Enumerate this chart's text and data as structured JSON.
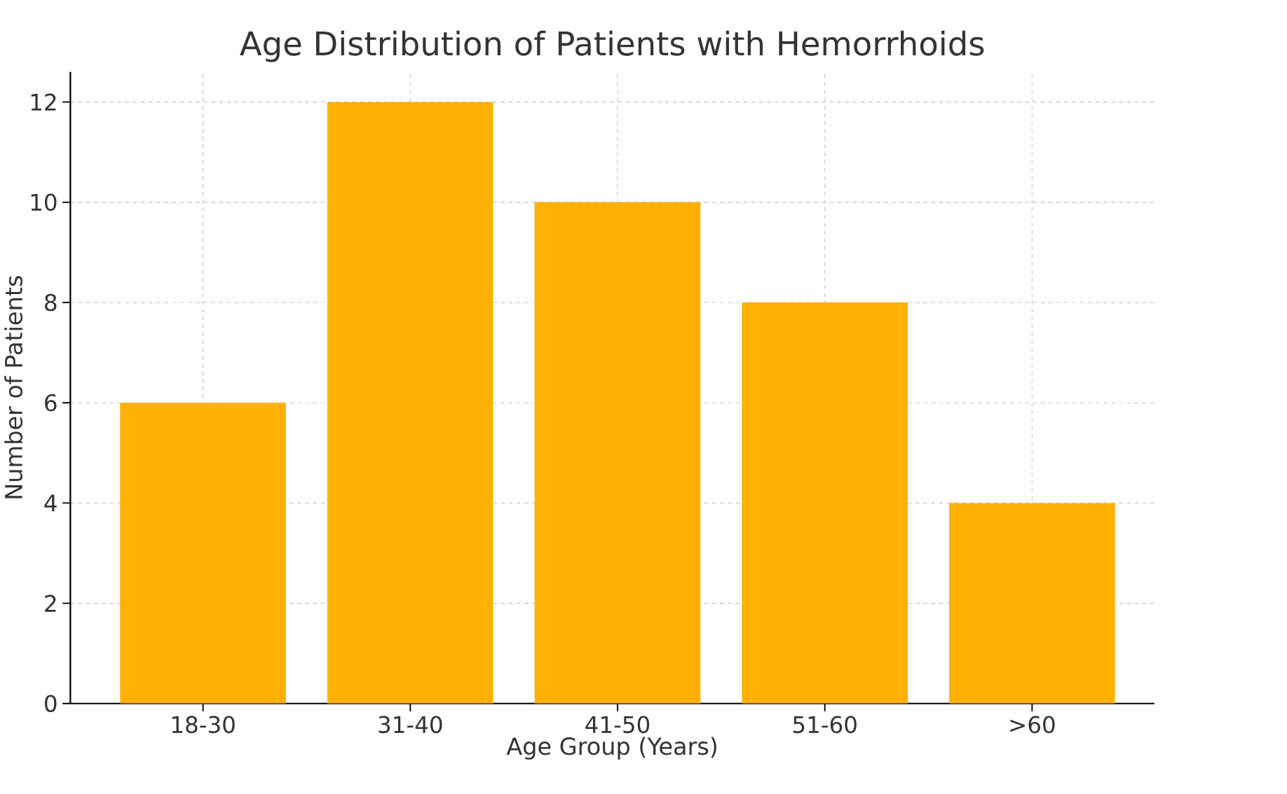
{
  "chart_data": {
    "type": "bar",
    "title": "Age Distribution of Patients with Hemorrhoids",
    "xlabel": "Age Group (Years)",
    "ylabel": "Number of Patients",
    "categories": [
      "18-30",
      "31-40",
      "41-50",
      "51-60",
      ">60"
    ],
    "values": [
      6,
      12,
      10,
      8,
      4
    ],
    "color": "#ffb000",
    "ylim": [
      0,
      12.6
    ],
    "yticks": [
      0,
      2,
      4,
      6,
      8,
      10,
      12
    ],
    "grid": true
  }
}
